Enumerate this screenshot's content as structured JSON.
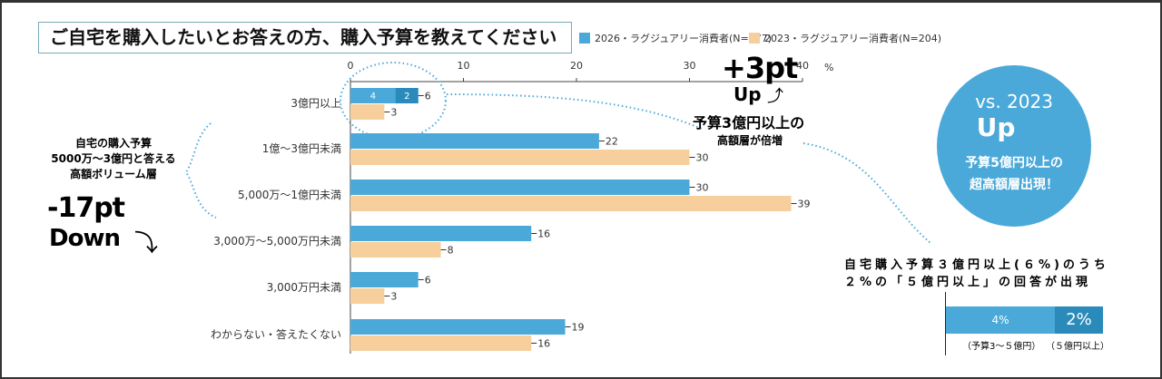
{
  "title": "ご自宅を購入したいとお答えの方、購入予算を教えてください",
  "chart_data": {
    "type": "bar",
    "orientation": "horizontal",
    "categories": [
      "3億円以上",
      "1億～3億円未満",
      "5,000万～1億円未満",
      "3,000万～5,000万円未満",
      "3,000万円未満",
      "わからない・答えたくない"
    ],
    "series": [
      {
        "name": "2026・ラグジュアリー消費者(N=177)",
        "color": "#4aa9d9",
        "values": [
          6,
          22,
          30,
          16,
          6,
          19
        ]
      },
      {
        "name": "2023・ラグジュアリー消費者(N=204)",
        "color": "#f6cf9c",
        "values": [
          3,
          30,
          39,
          8,
          3,
          16
        ]
      }
    ],
    "split_2026_top": {
      "values": [
        4,
        2
      ],
      "labels": [
        "4",
        "2"
      ],
      "colors": [
        "#4aa9d9",
        "#2a8bbb"
      ]
    },
    "xlim": [
      0,
      40
    ],
    "xticks": [
      0,
      10,
      20,
      30,
      40
    ],
    "xunit": "%",
    "legend": "top"
  },
  "annotations": {
    "up3": "+3pt",
    "up3_sub": "Up",
    "up3_text1": "予算3億円以上の",
    "up3_text2": "高額層が倍増",
    "left1": "自宅の購入予算",
    "left2": "5000万～3億円と答える",
    "left3": "高額ボリューム層",
    "down": "-17pt",
    "down_sub": "Down",
    "circle_vs": "vs. 2023",
    "circle_up": "Up",
    "circle_t1": "予算5億円以上の",
    "circle_t2": "超高額層出現！",
    "note1": "自宅購入予算３億円以上(６%)のうち",
    "note2": "２%の「５億円以上」の回答が出現",
    "bar_a": "4%",
    "bar_b": "2%",
    "bar_a_label": "（予算3～５億円）",
    "bar_b_label": "（５億円以上）"
  }
}
